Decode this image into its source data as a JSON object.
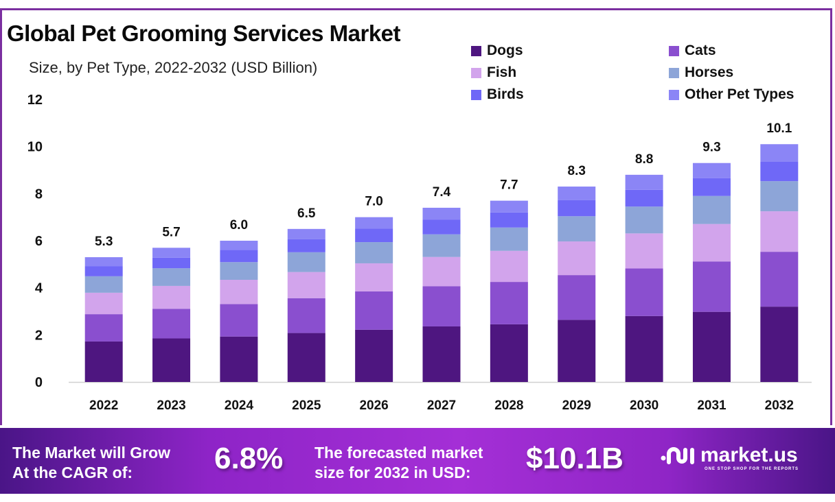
{
  "header": {
    "title": "Global Pet Grooming Services Market",
    "subtitle": "Size, by Pet Type, 2022-2032 (USD Billion)"
  },
  "chart_data": {
    "type": "bar",
    "stacked": true,
    "title": "Global Pet Grooming Services Market",
    "subtitle": "Size, by Pet Type, 2022-2032 (USD Billion)",
    "xlabel": "",
    "ylabel": "USD Billion",
    "ylim": [
      0,
      12
    ],
    "yticks": [
      0,
      2,
      4,
      6,
      8,
      10,
      12
    ],
    "grid": false,
    "legend_position": "top-right",
    "categories": [
      "2022",
      "2023",
      "2024",
      "2025",
      "2026",
      "2027",
      "2028",
      "2029",
      "2030",
      "2031",
      "2032"
    ],
    "series": [
      {
        "name": "Dogs",
        "color": "#4e1680",
        "values": [
          1.72,
          1.85,
          1.93,
          2.08,
          2.22,
          2.36,
          2.45,
          2.64,
          2.8,
          2.98,
          3.2
        ]
      },
      {
        "name": "Cats",
        "color": "#8a4fcf",
        "values": [
          1.16,
          1.26,
          1.38,
          1.48,
          1.63,
          1.71,
          1.8,
          1.9,
          2.02,
          2.14,
          2.33
        ]
      },
      {
        "name": "Fish",
        "color": "#d2a4ec",
        "values": [
          0.91,
          0.97,
          1.03,
          1.11,
          1.19,
          1.24,
          1.32,
          1.43,
          1.49,
          1.59,
          1.72
        ]
      },
      {
        "name": "Horses",
        "color": "#8da5d8",
        "values": [
          0.7,
          0.75,
          0.75,
          0.84,
          0.9,
          0.96,
          0.99,
          1.07,
          1.14,
          1.19,
          1.28
        ]
      },
      {
        "name": "Birds",
        "color": "#6f68f7",
        "values": [
          0.43,
          0.45,
          0.52,
          0.55,
          0.58,
          0.63,
          0.64,
          0.68,
          0.71,
          0.76,
          0.82
        ]
      },
      {
        "name": "Other Pet Types",
        "color": "#8b85f6",
        "values": [
          0.38,
          0.42,
          0.39,
          0.44,
          0.48,
          0.5,
          0.5,
          0.58,
          0.64,
          0.64,
          0.75
        ]
      }
    ],
    "totals": [
      "5.3",
      "5.7",
      "6.0",
      "6.5",
      "7.0",
      "7.4",
      "7.7",
      "8.3",
      "8.8",
      "9.3",
      "10.1"
    ]
  },
  "banner": {
    "cagr_label_line1": "The Market will Grow",
    "cagr_label_line2": "At the CAGR of:",
    "cagr_value": "6.8%",
    "forecast_label_line1": "The forecasted market",
    "forecast_label_line2": "size for 2032 in USD:",
    "forecast_value": "$10.1B",
    "logo_name": "market.us",
    "logo_tagline": "ONE STOP SHOP FOR THE REPORTS",
    "background_color": "#9b2bd0"
  }
}
